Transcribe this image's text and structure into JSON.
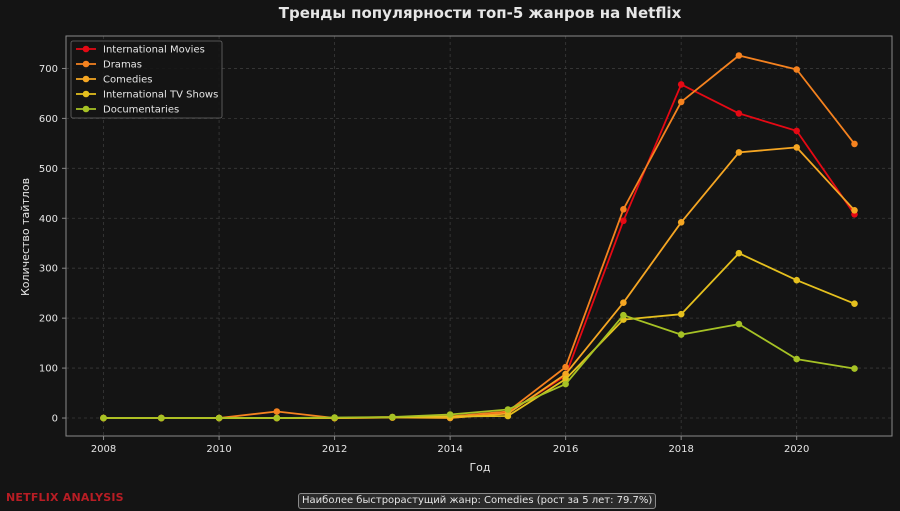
{
  "brand_label": "NETFLIX ANALYSIS",
  "footnote": "Наиболее быстрорастущий жанр: Comedies (рост за 5 лет: 79.7%)",
  "colors": {
    "background": "#141414",
    "plot_background": "#141414",
    "text": "#e6e6e6",
    "brand": "#b81d24"
  },
  "chart_data": {
    "type": "line",
    "title": "Тренды популярности топ-5 жанров на Netflix",
    "xlabel": "Год",
    "ylabel": "Количество тайтлов",
    "x": [
      2008,
      2009,
      2010,
      2011,
      2012,
      2013,
      2014,
      2015,
      2016,
      2017,
      2018,
      2019,
      2020,
      2021
    ],
    "xlim": [
      2007.35,
      2021.65
    ],
    "ylim": [
      -36,
      765
    ],
    "xticks": [
      2008,
      2010,
      2012,
      2014,
      2016,
      2018,
      2020
    ],
    "yticks": [
      0,
      100,
      200,
      300,
      400,
      500,
      600,
      700
    ],
    "grid": true,
    "legend_position": "top-left",
    "series": [
      {
        "name": "International Movies",
        "color": "#e50914",
        "values": [
          0,
          0,
          0,
          0,
          0,
          1,
          3,
          10,
          85,
          395,
          668,
          610,
          575,
          408
        ]
      },
      {
        "name": "Dramas",
        "color": "#f5821f",
        "values": [
          0,
          0,
          0,
          13,
          0,
          2,
          3,
          13,
          102,
          418,
          633,
          726,
          698,
          549
        ]
      },
      {
        "name": "Comedies",
        "color": "#f5a623",
        "values": [
          0,
          0,
          0,
          0,
          0,
          1,
          0,
          9,
          88,
          231,
          392,
          532,
          542,
          416
        ]
      },
      {
        "name": "International TV Shows",
        "color": "#e5c01e",
        "values": [
          0,
          0,
          0,
          0,
          0,
          1,
          3,
          4,
          78,
          197,
          208,
          330,
          276,
          229
        ]
      },
      {
        "name": "Documentaries",
        "color": "#a6c225",
        "values": [
          0,
          0,
          0,
          0,
          1,
          2,
          7,
          17,
          68,
          206,
          167,
          188,
          118,
          99
        ]
      }
    ]
  }
}
